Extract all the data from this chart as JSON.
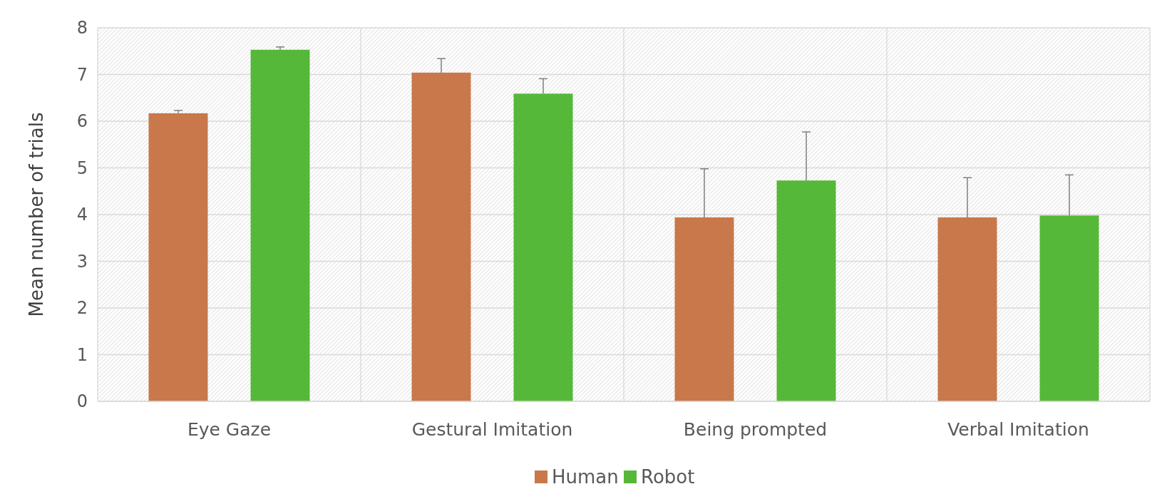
{
  "chart_data": {
    "type": "bar",
    "ylabel": "Mean number of trials",
    "categories": [
      "Eye Gaze",
      "Gestural Imitation",
      "Being prompted",
      "Verbal Imitation"
    ],
    "series": [
      {
        "name": "Human",
        "color": "#c8784a",
        "values": [
          6.17,
          7.04,
          3.94,
          3.94
        ],
        "errors": [
          [
            6.17,
            6.23
          ],
          [
            7.04,
            7.34
          ],
          [
            3.94,
            4.98
          ],
          [
            3.94,
            4.79
          ]
        ]
      },
      {
        "name": "Robot",
        "color": "#56b839",
        "values": [
          7.53,
          6.59,
          4.73,
          3.98
        ],
        "errors": [
          [
            7.53,
            7.59
          ],
          [
            6.59,
            6.91
          ],
          [
            4.73,
            5.77
          ],
          [
            3.98,
            4.85
          ]
        ]
      }
    ],
    "ylim": [
      0,
      8
    ],
    "yticks": [
      0,
      1,
      2,
      3,
      4,
      5,
      6,
      7,
      8
    ],
    "grid": true,
    "legend": "bottom"
  }
}
